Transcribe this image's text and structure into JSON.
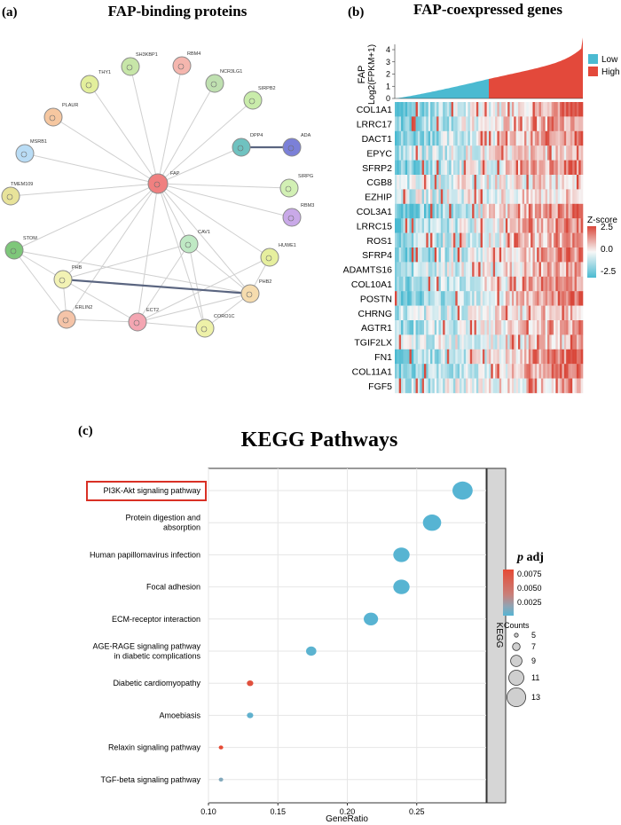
{
  "panel_a": {
    "label": "(a)",
    "title": "FAP-binding proteins",
    "nodes": [
      {
        "id": "FAP",
        "color": "#f08080"
      },
      {
        "id": "SH3KBP1",
        "color": "#c7e6a8"
      },
      {
        "id": "RBM4",
        "color": "#f5b6ae"
      },
      {
        "id": "THY1",
        "color": "#e3ef9c"
      },
      {
        "id": "NCR3LG1",
        "color": "#bfe0b0"
      },
      {
        "id": "SIRPB2",
        "color": "#c9ecaa"
      },
      {
        "id": "PLAUR",
        "color": "#f6c7a0"
      },
      {
        "id": "DPP4",
        "color": "#6fc2c0"
      },
      {
        "id": "ADA",
        "color": "#7b80d8"
      },
      {
        "id": "MSRB1",
        "color": "#b9dcf5"
      },
      {
        "id": "SIRPG",
        "color": "#d2f0b4"
      },
      {
        "id": "TMEM109",
        "color": "#e8e39a"
      },
      {
        "id": "RBM3",
        "color": "#c9a9e8"
      },
      {
        "id": "CAV1",
        "color": "#bfe9c4"
      },
      {
        "id": "HUWE1",
        "color": "#e6ef9e"
      },
      {
        "id": "STOM",
        "color": "#7ec77a"
      },
      {
        "id": "PHB",
        "color": "#f2f2b4"
      },
      {
        "id": "PHB2",
        "color": "#f6dcae"
      },
      {
        "id": "ERLIN2",
        "color": "#f5c4a8"
      },
      {
        "id": "ECT2",
        "color": "#f4a6b2"
      },
      {
        "id": "CORO1C",
        "color": "#eef1a8"
      }
    ],
    "edges": [
      [
        "FAP",
        "SH3KBP1"
      ],
      [
        "FAP",
        "RBM4"
      ],
      [
        "FAP",
        "THY1"
      ],
      [
        "FAP",
        "NCR3LG1"
      ],
      [
        "FAP",
        "SIRPB2"
      ],
      [
        "FAP",
        "PLAUR"
      ],
      [
        "FAP",
        "DPP4"
      ],
      [
        "FAP",
        "MSRB1"
      ],
      [
        "FAP",
        "SIRPG"
      ],
      [
        "FAP",
        "TMEM109"
      ],
      [
        "FAP",
        "RBM3"
      ],
      [
        "FAP",
        "CAV1"
      ],
      [
        "FAP",
        "HUWE1"
      ],
      [
        "FAP",
        "STOM"
      ],
      [
        "FAP",
        "PHB"
      ],
      [
        "FAP",
        "PHB2"
      ],
      [
        "FAP",
        "ERLIN2"
      ],
      [
        "FAP",
        "ECT2"
      ],
      [
        "FAP",
        "CORO1C"
      ],
      [
        "STOM",
        "PHB"
      ],
      [
        "STOM",
        "ERLIN2"
      ],
      [
        "STOM",
        "PHB2"
      ],
      [
        "PHB",
        "ERLIN2"
      ],
      [
        "PHB",
        "ECT2"
      ],
      [
        "PHB",
        "CAV1"
      ],
      [
        "ERLIN2",
        "ECT2"
      ],
      [
        "ECT2",
        "CAV1"
      ],
      [
        "ECT2",
        "HUWE1"
      ],
      [
        "ECT2",
        "PHB2"
      ],
      [
        "ECT2",
        "CORO1C"
      ],
      [
        "CAV1",
        "CORO1C"
      ],
      [
        "CAV1",
        "PHB2"
      ],
      [
        "HUWE1",
        "PHB2"
      ],
      [
        "CORO1C",
        "PHB2"
      ]
    ],
    "strong_edges": [
      [
        "DPP4",
        "ADA"
      ],
      [
        "PHB",
        "PHB2"
      ]
    ]
  },
  "panel_b": {
    "label": "(b)",
    "title": "FAP-coexpressed genes",
    "ylabel_line1": "FAP",
    "ylabel_line2": "Log2(FPKM+1)",
    "yticks": [
      "0",
      "1",
      "2",
      "3",
      "4"
    ],
    "legend": [
      {
        "label": "Low",
        "color": "#4bbad1"
      },
      {
        "label": "High",
        "color": "#e3493b"
      }
    ],
    "low_fraction": 0.5,
    "genes": [
      "COL1A1",
      "LRRC17",
      "DACT1",
      "EPYC",
      "SFRP2",
      "CGB8",
      "EZHIP",
      "COL3A1",
      "LRRC15",
      "ROS1",
      "SFRP4",
      "ADAMTS16",
      "COL10A1",
      "POSTN",
      "CHRNG",
      "AGTR1",
      "TGIF2LX",
      "FN1",
      "COL11A1",
      "FGF5"
    ],
    "zscore_title": "Z-score",
    "zscore_ticks": [
      "2.5",
      "0.0",
      "-2.5"
    ]
  },
  "chart_data": {
    "type": "scatter",
    "panel_label": "(c)",
    "title": "KEGG Pathways",
    "xlabel": "GeneRatio",
    "ylabel": "",
    "xlim": [
      0.1,
      0.3
    ],
    "xticks": [
      "0.10",
      "0.15",
      "0.20",
      "0.25"
    ],
    "xtick_values": [
      0.1,
      0.15,
      0.2,
      0.25
    ],
    "facet_label": "KEGG",
    "highlighted": "PI3K-Akt signaling pathway",
    "categories": [
      "PI3K-Akt signaling pathway",
      "Protein digestion and\nabsorption",
      "Human papillomavirus infection",
      "Focal adhesion",
      "ECM-receptor interaction",
      "AGE-RAGE signaling pathway\nin diabetic complications",
      "Diabetic cardiomyopathy",
      "Amoebiasis",
      "Relaxin signaling pathway",
      "TGF-beta signaling pathway"
    ],
    "points": [
      {
        "x": 0.283,
        "count": 13,
        "padj": 0.0004
      },
      {
        "x": 0.261,
        "count": 12,
        "padj": 0.0004
      },
      {
        "x": 0.239,
        "count": 11,
        "padj": 0.0005
      },
      {
        "x": 0.239,
        "count": 11,
        "padj": 0.0005
      },
      {
        "x": 0.217,
        "count": 10,
        "padj": 0.0006
      },
      {
        "x": 0.174,
        "count": 8,
        "padj": 0.0008
      },
      {
        "x": 0.13,
        "count": 6,
        "padj": 0.0095
      },
      {
        "x": 0.13,
        "count": 6,
        "padj": 0.0012
      },
      {
        "x": 0.109,
        "count": 5,
        "padj": 0.0098
      },
      {
        "x": 0.109,
        "count": 5,
        "padj": 0.004
      }
    ],
    "padj_legend": {
      "title_italic": "p",
      "title_rest": " adj",
      "ticks": [
        "0.0075",
        "0.0050",
        "0.0025"
      ],
      "tick_values": [
        0.0075,
        0.005,
        0.0025
      ],
      "range": [
        0.0004,
        0.0098
      ]
    },
    "counts_legend": {
      "title": "Counts",
      "values": [
        5,
        7,
        9,
        11,
        13
      ],
      "labels": [
        "5",
        "7",
        "9",
        "11",
        "13"
      ]
    },
    "colors": {
      "low": "#56b4d3",
      "high": "#e64a35",
      "highlight_box": "#d93025"
    }
  }
}
